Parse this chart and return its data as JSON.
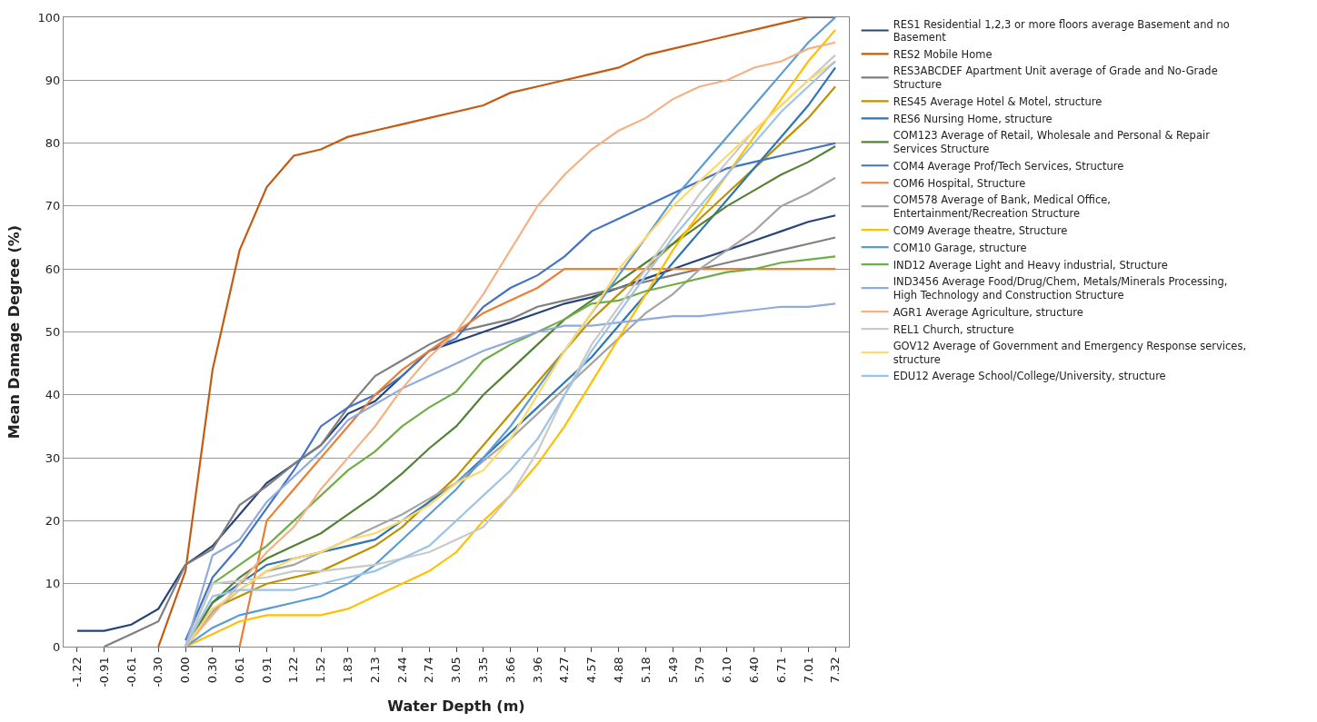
{
  "chart_data": {
    "type": "line",
    "xlabel": "Water Depth (m)",
    "ylabel": "Mean Damage Degree (%)",
    "categories": [
      "-1.22",
      "-0.91",
      "-0.61",
      "-0.30",
      "0.00",
      "0.30",
      "0.61",
      "0.91",
      "1.22",
      "1.52",
      "1.83",
      "2.13",
      "2.44",
      "2.74",
      "3.05",
      "3.35",
      "3.66",
      "3.96",
      "4.27",
      "4.57",
      "4.88",
      "5.18",
      "5.49",
      "5.79",
      "6.10",
      "6.40",
      "6.71",
      "7.01",
      "7.32"
    ],
    "ylim": [
      0,
      100
    ],
    "yticks": [
      0,
      10,
      20,
      30,
      40,
      50,
      60,
      70,
      80,
      90,
      100
    ],
    "grid": "y",
    "legend": "right",
    "marker": "none",
    "line_style": "solid",
    "series": [
      {
        "name": "RES1 Residential 1,2,3 or more floors average Basement and no Basement",
        "color": "#264478",
        "values": [
          2.5,
          2.5,
          3.5,
          6,
          13,
          16,
          21,
          26,
          29,
          32,
          37,
          39,
          43,
          47,
          48.5,
          50,
          51.5,
          53,
          54.5,
          55.5,
          57,
          58.5,
          60,
          61.5,
          63,
          64.5,
          66,
          67.5,
          68.5
        ]
      },
      {
        "name": "RES2 Mobile Home",
        "color": "#c55a11",
        "values": [
          null,
          null,
          null,
          0,
          12,
          44,
          63,
          73,
          78,
          79,
          81,
          82,
          83,
          84,
          85,
          86,
          88,
          89,
          90,
          91,
          92,
          94,
          95,
          96,
          97,
          98,
          99,
          100,
          100
        ]
      },
      {
        "name": "RES3ABCDEF Apartment Unit average of Grade and No-Grade Structure",
        "color": "#7f7f7f",
        "values": [
          null,
          0,
          2,
          4,
          13,
          15.5,
          22.5,
          25.5,
          29,
          32,
          38,
          43,
          45.5,
          48,
          50,
          51,
          52,
          54,
          55,
          56,
          57,
          58,
          59,
          60,
          61,
          62,
          63,
          64,
          65
        ]
      },
      {
        "name": "RES45 Average Hotel & Motel, structure",
        "color": "#bf9000",
        "values": [
          null,
          null,
          null,
          null,
          0,
          6,
          8,
          10,
          11,
          12,
          14,
          16,
          19,
          23,
          27,
          32,
          37,
          42,
          47,
          52,
          56,
          60,
          64,
          68,
          72,
          76,
          80,
          84,
          89
        ]
      },
      {
        "name": "RES6 Nursing Home, structure",
        "color": "#2e75b6",
        "values": [
          null,
          null,
          null,
          null,
          0,
          7,
          10,
          13,
          14,
          15,
          16,
          17,
          20,
          23,
          26,
          30,
          34,
          38,
          42,
          46,
          51,
          56,
          61,
          66,
          71,
          76,
          81,
          86,
          92
        ]
      },
      {
        "name": "COM123 Average of Retail, Wholesale and Personal & Repair Services Structure",
        "color": "#548235",
        "values": [
          null,
          null,
          null,
          null,
          0,
          7,
          11,
          14,
          16,
          18,
          21,
          24,
          27.5,
          31.5,
          35,
          40,
          44,
          48,
          52,
          55,
          58,
          61,
          64,
          67,
          70,
          72.5,
          75,
          77,
          79.5
        ]
      },
      {
        "name": "COM4 Average Prof/Tech Services, Structure",
        "color": "#4472c4",
        "values": [
          null,
          null,
          null,
          null,
          1,
          11,
          16,
          22,
          28,
          35,
          38,
          40,
          43,
          47,
          49,
          54,
          57,
          59,
          62,
          66,
          68,
          70,
          72,
          74,
          76,
          77,
          78,
          79,
          80
        ]
      },
      {
        "name": "COM6 Hospital, Structure",
        "color": "#ed7d31",
        "values": [
          null,
          null,
          null,
          null,
          0,
          0,
          0,
          20,
          25,
          30,
          35,
          40,
          44,
          47,
          50,
          53,
          55,
          57,
          60,
          60,
          60,
          60,
          60,
          60,
          60,
          60,
          60,
          60,
          60
        ]
      },
      {
        "name": "COM578 Average of Bank, Medical Office, Entertainment/Recreation Structure",
        "color": "#a5a5a5",
        "values": [
          null,
          null,
          null,
          null,
          0,
          5.5,
          9,
          12,
          13,
          15,
          17,
          19,
          21,
          23.5,
          26,
          29.5,
          33,
          37,
          41,
          45,
          49,
          53,
          56,
          60,
          63,
          66,
          70,
          72,
          74.5
        ]
      },
      {
        "name": "COM9 Average theatre, Structure",
        "color": "#ffc000",
        "values": [
          null,
          null,
          null,
          null,
          0,
          2,
          4,
          5,
          5,
          5,
          6,
          8,
          10,
          12,
          15,
          20,
          24,
          29,
          35,
          42,
          49,
          56,
          63,
          69,
          75,
          81,
          87,
          93,
          98
        ]
      },
      {
        "name": "COM10 Garage, structure",
        "color": "#5b9bd5",
        "values": [
          null,
          null,
          null,
          null,
          0,
          3,
          5,
          6,
          7,
          8,
          10,
          13,
          17,
          21,
          25,
          30,
          35,
          41,
          47,
          53,
          59,
          65,
          71,
          76,
          81,
          86,
          91,
          96,
          100
        ]
      },
      {
        "name": "IND12 Average Light and Heavy industrial, Structure",
        "color": "#70ad47",
        "values": [
          null,
          null,
          null,
          null,
          0,
          10,
          13,
          16,
          20,
          24,
          28,
          31,
          35,
          38,
          40.5,
          45.5,
          48,
          50,
          52,
          54.5,
          55,
          56.5,
          57.5,
          58.5,
          59.5,
          60,
          61,
          61.5,
          62
        ]
      },
      {
        "name": "IND3456 Average Food/Drug/Chem, Metals/Minerals Processing, High Technology and Construction Structure",
        "color": "#8faadc",
        "values": [
          null,
          null,
          null,
          null,
          0,
          14.5,
          17,
          23,
          27,
          31,
          36,
          38.5,
          41,
          43,
          45,
          47,
          48.5,
          50,
          51,
          51,
          51.5,
          52,
          52.5,
          52.5,
          53,
          53.5,
          54,
          54,
          54.5
        ]
      },
      {
        "name": "AGR1 Average Agriculture, structure",
        "color": "#f4b183",
        "values": [
          null,
          null,
          null,
          null,
          0,
          5,
          10,
          15,
          19,
          25,
          30,
          35,
          41,
          46,
          50,
          56,
          63,
          70,
          75,
          79,
          82,
          84,
          87,
          89,
          90,
          92,
          93,
          95,
          96
        ]
      },
      {
        "name": "REL1 Church, structure",
        "color": "#c9c9c9",
        "values": [
          null,
          null,
          null,
          null,
          0,
          10,
          10.5,
          11,
          12,
          12,
          12.5,
          13,
          14,
          15,
          17,
          19,
          24,
          31,
          40,
          48,
          54,
          60,
          66,
          72,
          77,
          82,
          86,
          90,
          94
        ]
      },
      {
        "name": "GOV12 Average of Government and Emergency Response services, structure",
        "color": "#ffd966",
        "values": [
          null,
          null,
          null,
          null,
          0,
          6,
          9,
          12,
          14,
          15,
          17,
          18,
          20,
          22.5,
          26,
          28,
          33,
          40,
          47,
          53,
          60,
          65,
          70,
          74,
          78,
          82,
          86,
          90,
          93
        ]
      },
      {
        "name": "EDU12 Average School/College/University, structure",
        "color": "#9dc3e6",
        "values": [
          null,
          null,
          null,
          null,
          0,
          8,
          9,
          9,
          9,
          10,
          11,
          12,
          14,
          16,
          20,
          24,
          28,
          33,
          40,
          47,
          53,
          59,
          65,
          70,
          75,
          80,
          85,
          89,
          93
        ]
      }
    ]
  }
}
